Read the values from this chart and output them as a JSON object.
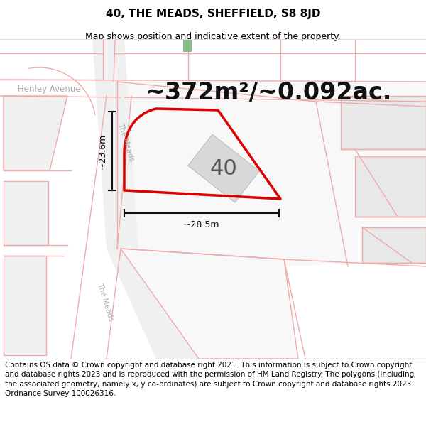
{
  "title": "40, THE MEADS, SHEFFIELD, S8 8JD",
  "subtitle": "Map shows position and indicative extent of the property.",
  "area_text": "~372m²/~0.092ac.",
  "label_40": "40",
  "dim_width": "~28.5m",
  "dim_height": "~23.6m",
  "street_henley": "Henley Avenue",
  "street_meads_upper": "The Meads",
  "street_meads_lower": "The Meads",
  "footer": "Contains OS data © Crown copyright and database right 2021. This information is subject to Crown copyright and database rights 2023 and is reproduced with the permission of HM Land Registry. The polygons (including the associated geometry, namely x, y co-ordinates) are subject to Crown copyright and database rights 2023 Ordnance Survey 100026316.",
  "map_bg": "#ffffff",
  "parcel_bg": "#f7f7f7",
  "road_line": "#f0aaaa",
  "gray_line": "#cccccc",
  "red_polygon": "#dd0000",
  "building_fill": "#d8d8d8",
  "building_edge": "#bbbbbb",
  "green_accent": "#88bb88",
  "dim_color": "#111111",
  "street_color": "#aaaaaa",
  "area_color": "#111111",
  "number_color": "#555555",
  "title_fontsize": 11,
  "subtitle_fontsize": 9,
  "area_fontsize": 24,
  "number_fontsize": 22,
  "dim_fontsize": 9,
  "street_fontsize": 8.5,
  "footer_fontsize": 7.5
}
